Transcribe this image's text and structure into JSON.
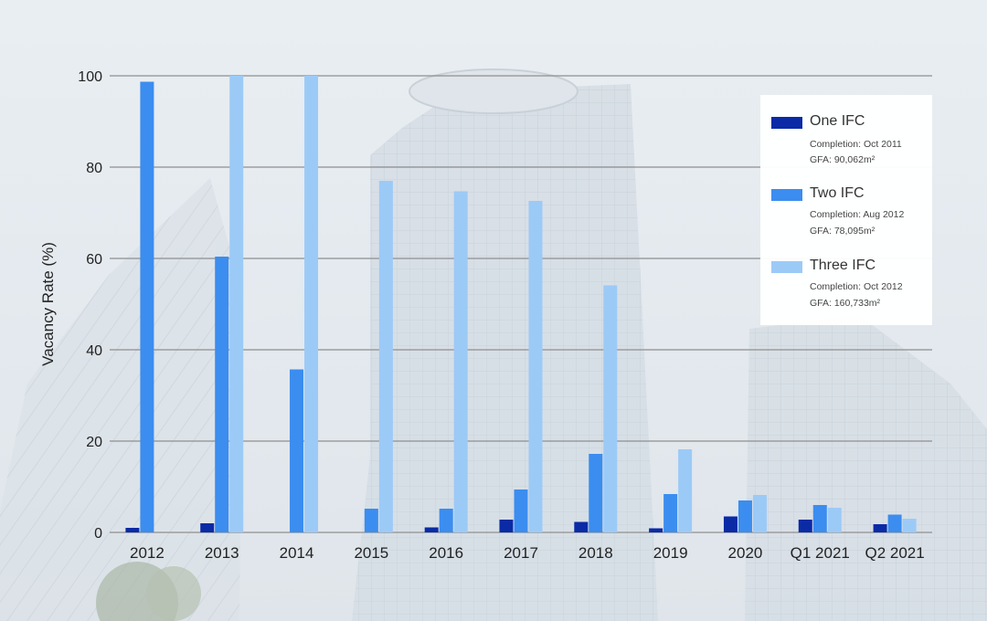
{
  "chart_data": {
    "type": "bar",
    "ylabel": "Vacancy Rate (%)",
    "xlabel": "",
    "ylim": [
      0,
      100
    ],
    "yticks": [
      0,
      20,
      40,
      60,
      80,
      100
    ],
    "grid": true,
    "legend_position": "top-right",
    "categories": [
      "2012",
      "2013",
      "2014",
      "2015",
      "2016",
      "2017",
      "2018",
      "2019",
      "2020",
      "Q1 2021",
      "Q2 2021"
    ],
    "series": [
      {
        "name": "One IFC",
        "color": "#0a2aa6",
        "completion": "Completion: Oct 2011",
        "gfa": "GFA: 90,062m²",
        "values": [
          1.0,
          2.0,
          null,
          null,
          1.1,
          2.8,
          2.3,
          0.9,
          3.5,
          2.8,
          1.8
        ]
      },
      {
        "name": "Two IFC",
        "color": "#3b8def",
        "completion": "Completion: Aug 2012",
        "gfa": "GFA: 78,095m²",
        "values": [
          98.7,
          60.4,
          35.7,
          5.2,
          5.2,
          9.4,
          17.2,
          8.4,
          7.0,
          6.0,
          3.9
        ]
      },
      {
        "name": "Three IFC",
        "color": "#9ccaf7",
        "completion": "Completion: Oct 2012",
        "gfa": "GFA: 160,733m²",
        "values": [
          null,
          100,
          100,
          77.0,
          74.7,
          72.6,
          54.1,
          18.2,
          8.2,
          5.4,
          3.0
        ]
      }
    ]
  }
}
